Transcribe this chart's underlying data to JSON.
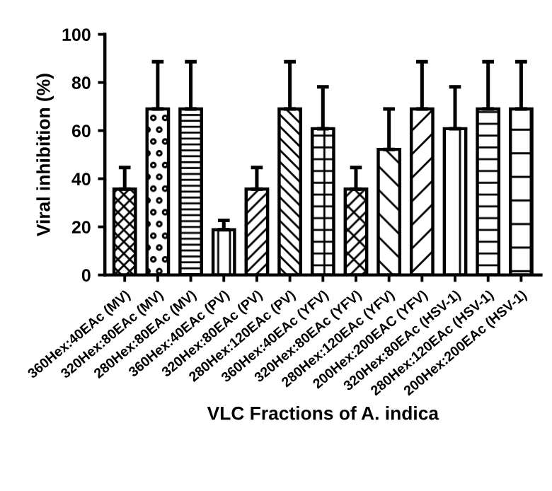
{
  "chart_data": {
    "type": "bar",
    "xlabel": "VLC Fractions of A. indica",
    "ylabel": "Viral inhibition (%)",
    "categories": [
      "360Hex:40EAc (MV)",
      "320Hex:80EAc (MV)",
      "280Hex:80EAc (MV)",
      "360Hex:40EAc (PV)",
      "320Hex:80EAc (PV)",
      "280Hex:120EAc (PV)",
      "360Hex:40EAc (YFV)",
      "320Hex:80EAc (YFV)",
      "280Hex:120EAc (YFV)",
      "200Hex:200EAC (YFV)",
      "320Hex:80EAc (HSV-1)",
      "280Hex:120EAc (HSV-1)",
      "200Hex:200EAc (HSV-1)"
    ],
    "values": [
      35.7,
      69,
      69,
      18.8,
      35.7,
      69,
      60.8,
      35.7,
      52.2,
      69,
      60.8,
      69,
      69
    ],
    "errors": [
      [
        35.7,
        44.7
      ],
      [
        69,
        88.6
      ],
      [
        69,
        88.6
      ],
      [
        18.8,
        22.7
      ],
      [
        35.7,
        44.7
      ],
      [
        69,
        88.6
      ],
      [
        60.8,
        78.2
      ],
      [
        35.7,
        44.7
      ],
      [
        52.2,
        69
      ],
      [
        69,
        88.6
      ],
      [
        60.8,
        78.2
      ],
      [
        69,
        88.6
      ],
      [
        69,
        88.6
      ]
    ],
    "ylim": [
      0,
      100
    ],
    "yticks": [
      0,
      20,
      40,
      60,
      80,
      100
    ],
    "grid": false,
    "legend": false
  }
}
